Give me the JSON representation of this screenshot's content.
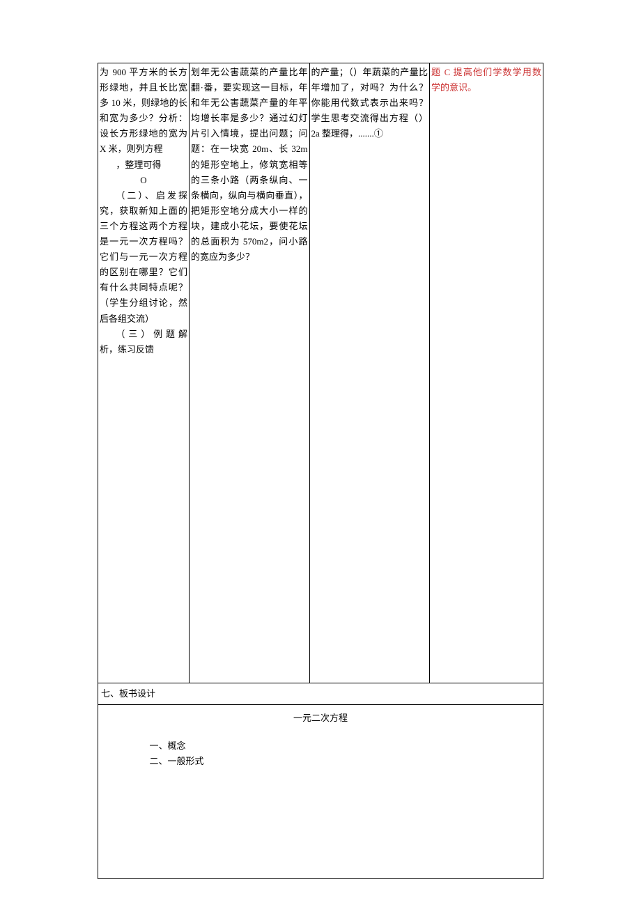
{
  "row": {
    "c1": {
      "p1": "为 900 平方米的长方形绿地，并且长比宽多 10 米，则绿地的长和宽为多少？分析：设长方形绿地的宽为 X 米，则列方程",
      "p2_blank": "，整理可得",
      "p3_blank": "O",
      "p4": "（二）、启发探究，获取新知上面的三个方程这两个方程是一元一次方程吗？它们与一元一次方程的区别在哪里？它们有什么共同特点呢？（学生分组讨论，然后各组交流）",
      "p5": "（三）例题解析，练习反馈"
    },
    "c2": "划年无公害蔬菜的产量比年翻·番，要实现这一目标，年和年无公害蔬菜产量的年平均增长率是多少？通过幻灯片引入情境，提出问题；问题：在一块宽 20m、长 32m 的矩形空地上，修筑宽相等的三条小路（两条纵向、一条横向，纵向与横向垂直），把矩形空地分成大小一样的块，建成小花坛，要使花坛的总面积为 570m2，问小路的宽应为多少？",
    "c3": "的产量；（）年蔬菜的产量比年增加了，对吗？为什么？你能用代数式表示出来吗？学生思考交流得出方程（）2a 整理得，.......①",
    "c4": "题 C 提高他们学数学用数学的意识。"
  },
  "section_label": "七、板书设计",
  "board": {
    "title": "一元二次方程",
    "item1": "一、概念",
    "item2": "二、一般形式"
  },
  "colors": {
    "text": "#000000",
    "border": "#000000",
    "bg": "#ffffff",
    "accent": "#cc3333"
  },
  "typography": {
    "body_pt": 13,
    "line_height": 1.7,
    "font_family": "SimSun"
  }
}
